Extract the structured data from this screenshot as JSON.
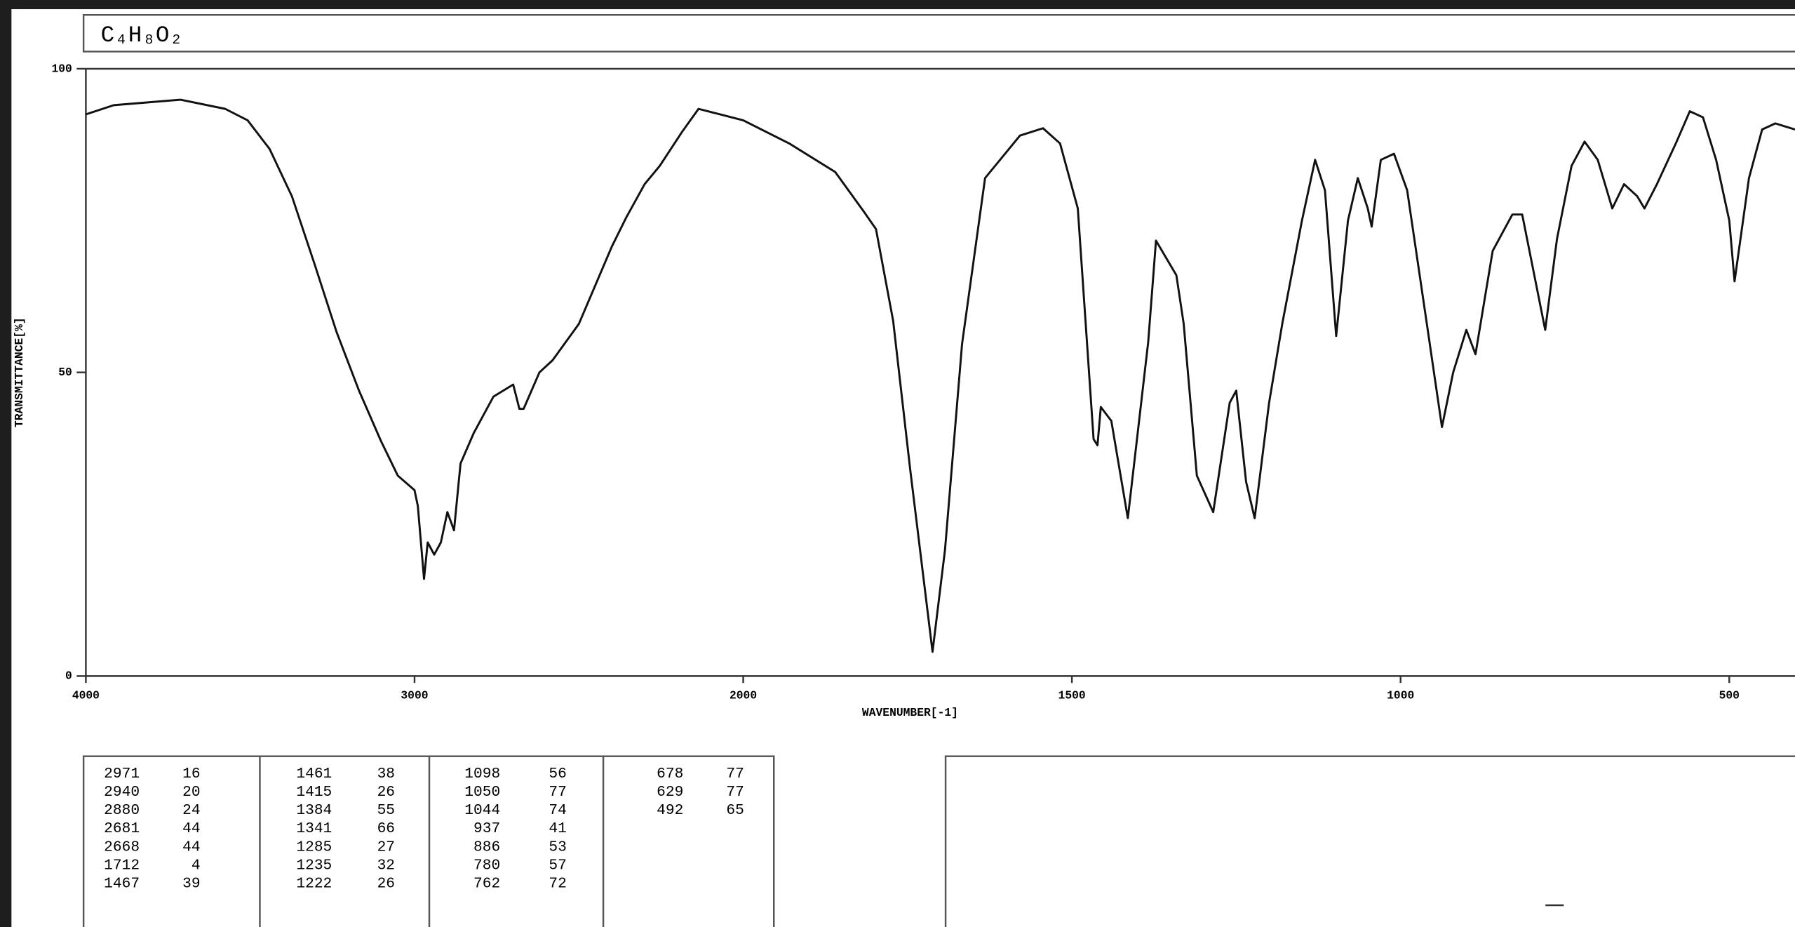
{
  "chart_data": {
    "type": "line",
    "title": "C₄H₈O₂",
    "x_label": "WAVENUMBER[-1]",
    "y_label": "TRANSMITTANCE[%]",
    "xlim": [
      4000,
      400
    ],
    "xticks": [
      4000,
      3000,
      2000,
      1500,
      1000,
      500
    ],
    "x_scale_break": 2000,
    "x_scale_factor_below_break": 2,
    "ylim": [
      0,
      100
    ],
    "yticks": [
      0,
      50,
      100
    ],
    "color": "#111111",
    "x": [
      4000,
      3915,
      3712,
      3576,
      3508,
      3441,
      3373,
      3305,
      3237,
      3169,
      3102,
      3051,
      3000,
      2990,
      2971,
      2960,
      2940,
      2920,
      2900,
      2880,
      2860,
      2820,
      2760,
      2700,
      2681,
      2668,
      2620,
      2580,
      2500,
      2400,
      2356,
      2300,
      2254,
      2186,
      2136,
      2000,
      1930,
      1860,
      1816,
      1798,
      1772,
      1746,
      1712,
      1693,
      1667,
      1632,
      1579,
      1544,
      1518,
      1491,
      1467,
      1461,
      1456,
      1440,
      1415,
      1400,
      1384,
      1372,
      1341,
      1330,
      1310,
      1285,
      1260,
      1250,
      1235,
      1222,
      1200,
      1180,
      1150,
      1130,
      1115,
      1098,
      1080,
      1065,
      1050,
      1044,
      1030,
      1010,
      990,
      960,
      937,
      920,
      900,
      886,
      860,
      830,
      815,
      780,
      762,
      740,
      720,
      700,
      678,
      660,
      640,
      629,
      610,
      580,
      560,
      540,
      520,
      500,
      492,
      470,
      450,
      430,
      400
    ],
    "y": [
      92.5,
      94,
      94.9,
      93.4,
      91.5,
      86.8,
      79,
      68,
      56.6,
      47,
      38.7,
      33,
      30.6,
      28,
      16,
      22,
      20,
      22,
      27,
      24,
      35,
      40,
      46,
      48,
      44,
      44,
      50,
      52,
      58,
      70.7,
      75.5,
      81,
      84,
      89.6,
      93.4,
      91.5,
      87.7,
      83,
      76.4,
      73.6,
      58.5,
      34,
      4,
      20.8,
      54.7,
      82,
      89,
      90.2,
      87.7,
      77,
      39,
      38,
      44.3,
      42,
      26,
      40,
      55,
      71.7,
      66,
      58,
      33,
      27,
      45,
      47,
      32,
      26,
      45,
      58,
      75,
      85,
      80,
      56,
      75,
      82,
      77,
      74,
      85,
      86,
      80,
      58,
      41,
      50,
      57,
      53,
      70,
      76,
      76,
      57,
      72,
      84,
      88,
      85,
      77,
      81,
      79,
      77,
      81,
      88,
      93,
      92,
      85,
      75,
      65,
      82,
      90,
      91,
      90
    ]
  },
  "peak_table": {
    "columns": [
      [
        [
          2971,
          16
        ],
        [
          2940,
          20
        ],
        [
          2880,
          24
        ],
        [
          2681,
          44
        ],
        [
          2668,
          44
        ],
        [
          1712,
          4
        ],
        [
          1467,
          39
        ]
      ],
      [
        [
          1461,
          38
        ],
        [
          1415,
          26
        ],
        [
          1384,
          55
        ],
        [
          1341,
          66
        ],
        [
          1285,
          27
        ],
        [
          1235,
          32
        ],
        [
          1222,
          26
        ]
      ],
      [
        [
          1098,
          56
        ],
        [
          1050,
          77
        ],
        [
          1044,
          74
        ],
        [
          937,
          41
        ],
        [
          886,
          53
        ],
        [
          780,
          57
        ],
        [
          762,
          72
        ]
      ],
      [
        [
          678,
          77
        ],
        [
          629,
          77
        ],
        [
          492,
          65
        ]
      ]
    ]
  }
}
